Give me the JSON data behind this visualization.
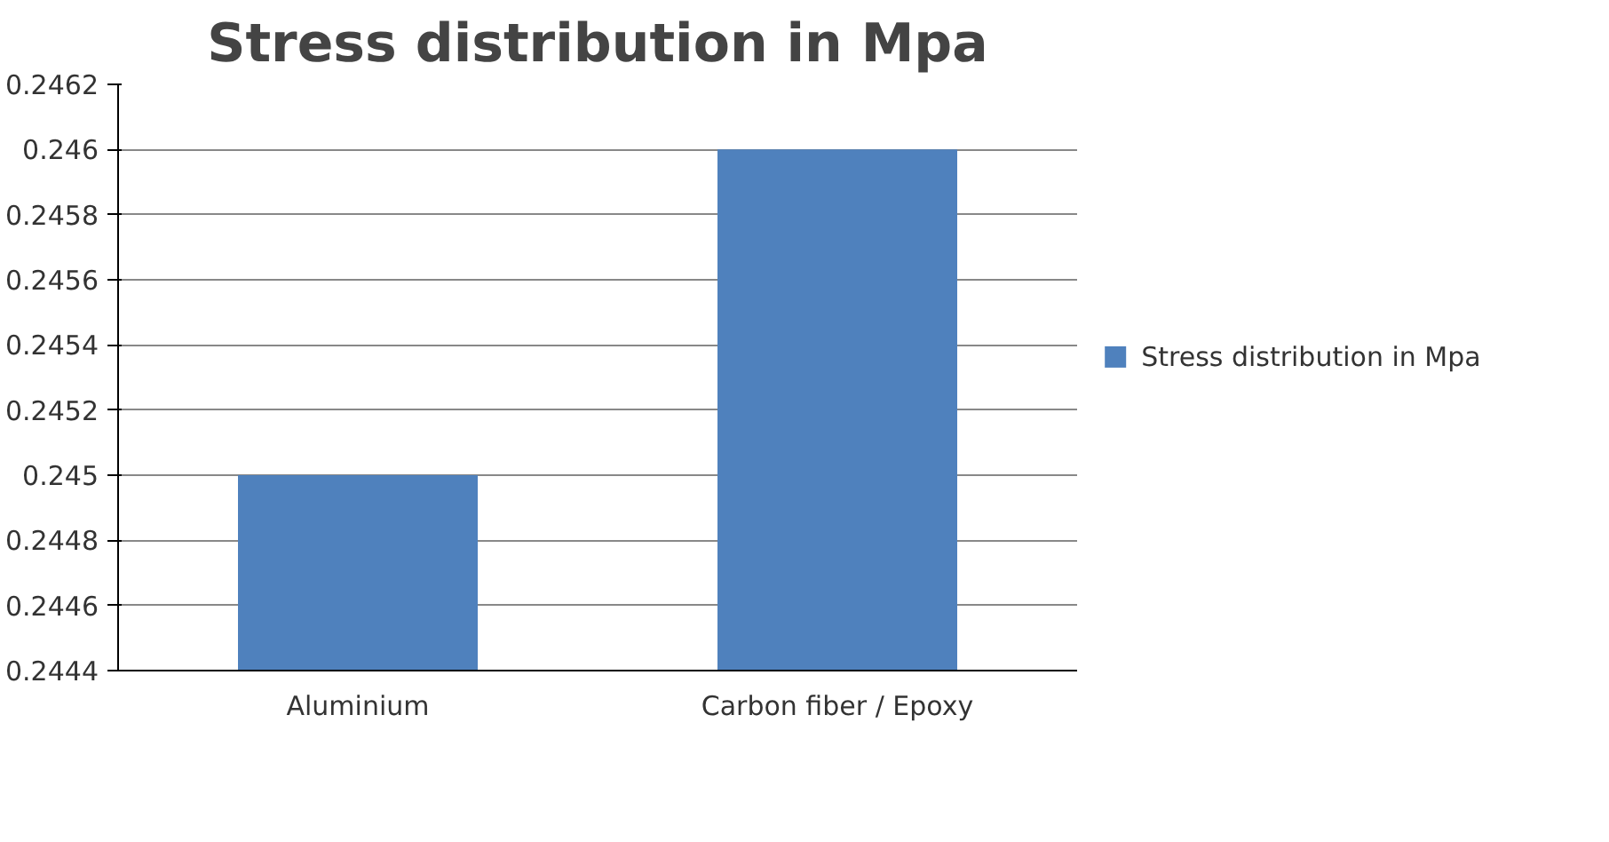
{
  "chart_data": {
    "type": "bar",
    "title": "Stress distribution in Mpa",
    "categories": [
      "Aluminium",
      "Carbon fiber / Epoxy"
    ],
    "series": [
      {
        "name": "Stress distribution in Mpa",
        "color": "#4f81bd",
        "values": [
          0.245,
          0.246
        ]
      }
    ],
    "ylim": [
      0.2444,
      0.2462
    ],
    "yticks": [
      0.2444,
      0.2446,
      0.2448,
      0.245,
      0.2452,
      0.2454,
      0.2456,
      0.2458,
      0.246,
      0.2462
    ],
    "grid": "y",
    "legend": "right"
  }
}
